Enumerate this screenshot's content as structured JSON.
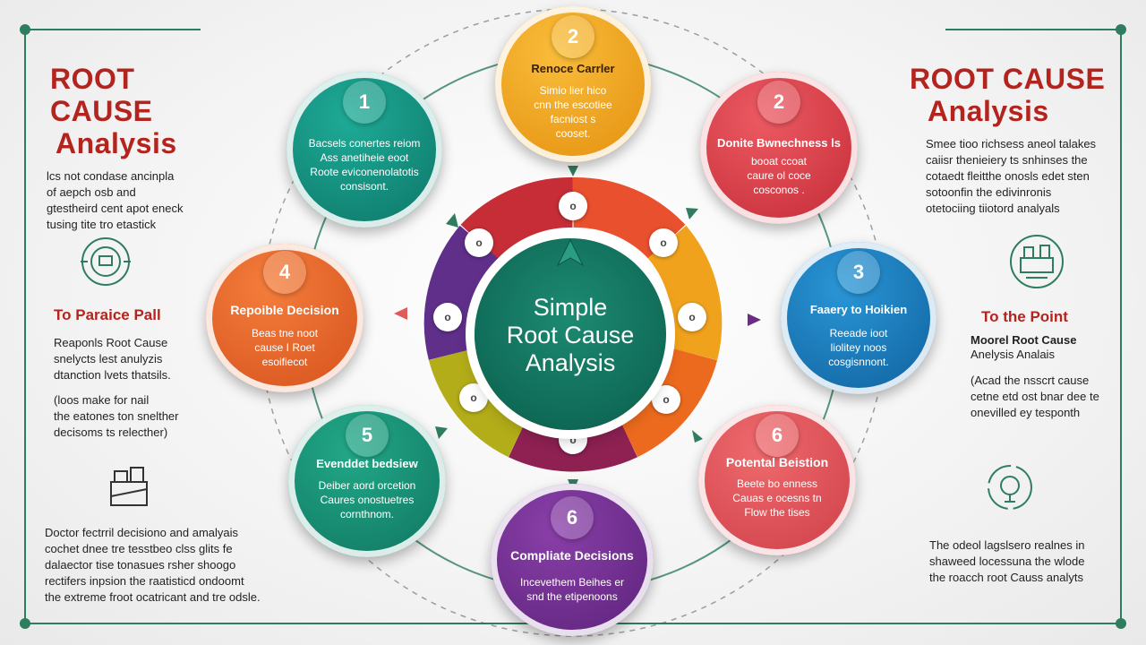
{
  "left_panel": {
    "title_line1": "ROOT CAUSE",
    "title_line2": "Analysis",
    "intro": [
      "lcs not condase ancinpla",
      "of aepch osb and",
      "gtestheird cent apot eneck",
      "tusing tite tro etastick"
    ],
    "section_title": "To Paraice Pall",
    "section_body1": [
      "Reaponls Root Cause",
      "snelycts lest anulyzis",
      "dtanction lvets thatsils."
    ],
    "section_body2": [
      "(loos make for nail",
      "the eatones ton snelther",
      "decisoms ts relecther)"
    ],
    "footer": [
      "Doctor fectrril decisiono and amalyais",
      "cochet dnee tre tesstbeo clss glits fe",
      "dalaector tise tonasues rsher shoogo",
      "rectifers inpsion the raatisticd ondoomt",
      "the extreme froot ocatricant and tre odsle."
    ]
  },
  "right_panel": {
    "title_line1": "ROOT CAUSE",
    "title_line2": "Analysis",
    "intro": [
      "Smee tioo richsess aneol talakes",
      "caiisr thenieiery ts snhinses the",
      "cotaedt fleitthe onosls edet sten",
      "sotoonfin the edivinronis",
      "otetociing tiiotord analyals"
    ],
    "section_title": "To the Point",
    "section_sub": [
      "Moorel Root Cause",
      "Anelysis Analais"
    ],
    "section_body": [
      "(Acad the nsscrt cause",
      "cetne etd ost bnar dee te",
      "onevilled ey tesponth"
    ],
    "footer": [
      "The odeol lagslsero realnes in",
      "shaweed locessuna the wlode",
      "the roacch root Causs analyts"
    ]
  },
  "center": {
    "title_lines": [
      "Simple",
      "Root Cause",
      "Analysis"
    ]
  },
  "ring_dots": [
    "o",
    "o",
    "o",
    "o",
    "o",
    "o",
    "o",
    "o"
  ],
  "nodes": [
    {
      "number": "2",
      "title": "Renoce Carrler",
      "body": [
        "Simio lier hico",
        "cnn the escotiee",
        "facniost s",
        "cooset."
      ]
    },
    {
      "number": "1",
      "title": "",
      "body": [
        "Bacsels conertes reiom",
        "Ass anetiheie eoot",
        "Roote eviconenolatotis",
        "consisont."
      ]
    },
    {
      "number": "2",
      "title": "Donite Bwnechness ls",
      "body": [
        "booat ccoat",
        "caure ol coce",
        "cosconos ."
      ]
    },
    {
      "number": "4",
      "title": "Repoible Decision",
      "body": [
        "Beas tne noot",
        "cause I Roet",
        "esoifiecot"
      ]
    },
    {
      "number": "3",
      "title": "Faaery to Hoikien",
      "body": [
        "Reeade ioot",
        "liolitey noos",
        "cosgisnnont."
      ]
    },
    {
      "number": "5",
      "title": "Evenddet bedsiew",
      "body": [
        "Deiber aord orcetion",
        "Caures onostuetres",
        "cornthnom."
      ]
    },
    {
      "number": "6",
      "title": "Potental Beistion",
      "body": [
        "Beete bo enness",
        "Cauas e ocesns tn",
        "Flow the tises"
      ]
    },
    {
      "number": "6",
      "title": "Compliate Decisions",
      "body": [
        "Incevethem Beihes er",
        "snd the etipenoons"
      ]
    }
  ],
  "colors": {
    "teal": "#138a7b",
    "orange": "#f0a21c",
    "red": "#d83b45",
    "orange_red": "#e75a24",
    "blue": "#1577b9",
    "green_teal": "#1d9077",
    "coral": "#e04b52",
    "purple": "#6a2c86",
    "title_red": "#b3241f",
    "frame_green": "#2f7d5f"
  }
}
